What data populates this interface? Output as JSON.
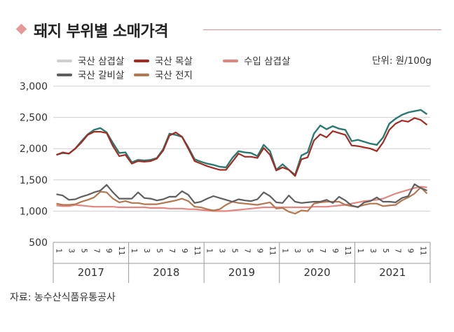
{
  "title": "돼지 부위별 소매가격",
  "source": "자료: 농수산식품유통공사",
  "unit_label": "단위: 원/100g",
  "chart_data": {
    "type": "line",
    "unit": "원/100g",
    "ylim": [
      500,
      3000
    ],
    "y_ticks": [
      500,
      1000,
      1500,
      2000,
      2500,
      3000
    ],
    "y_tick_labels": [
      "500",
      "1,000",
      "1,500",
      "2,000",
      "2,500",
      "3,000"
    ],
    "x_month_ticks": [
      "1",
      "3",
      "5",
      "7",
      "9",
      "11"
    ],
    "years": [
      "2017",
      "2018",
      "2019",
      "2020",
      "2021"
    ],
    "x_count": 60,
    "grid": true,
    "series": [
      {
        "name": "국산 삼겹살",
        "color": "#cfcfcf",
        "values": [
          1900,
          1930,
          1920,
          2000,
          2120,
          2230,
          2300,
          2330,
          2260,
          2090,
          1930,
          1940,
          1780,
          1820,
          1810,
          1820,
          1850,
          1990,
          2240,
          2220,
          2190,
          2020,
          1830,
          1790,
          1760,
          1740,
          1710,
          1700,
          1850,
          1960,
          1940,
          1930,
          1880,
          2060,
          1960,
          1660,
          1750,
          1660,
          1580,
          1890,
          1940,
          2240,
          2370,
          2310,
          2360,
          2320,
          2300,
          2120,
          2140,
          2110,
          2080,
          2060,
          2180,
          2400,
          2480,
          2540,
          2580,
          2600,
          2620,
          2550
        ]
      },
      {
        "name": "국산 목살",
        "color": "#a52a22",
        "values": [
          1900,
          1940,
          1920,
          2000,
          2100,
          2220,
          2270,
          2270,
          2250,
          2040,
          1880,
          1900,
          1760,
          1800,
          1790,
          1800,
          1840,
          1970,
          2210,
          2260,
          2190,
          2000,
          1800,
          1760,
          1720,
          1690,
          1660,
          1660,
          1790,
          1920,
          1870,
          1870,
          1850,
          2010,
          1900,
          1650,
          1700,
          1660,
          1560,
          1830,
          1860,
          2130,
          2230,
          2180,
          2280,
          2250,
          2220,
          2050,
          2040,
          2020,
          2000,
          1960,
          2100,
          2300,
          2400,
          2450,
          2430,
          2490,
          2460,
          2380
        ]
      },
      {
        "name": "국산 갈비살",
        "color": "#5f5f5f",
        "values": [
          1270,
          1250,
          1180,
          1190,
          1230,
          1260,
          1300,
          1330,
          1420,
          1300,
          1200,
          1200,
          1200,
          1300,
          1210,
          1200,
          1170,
          1190,
          1230,
          1230,
          1320,
          1260,
          1130,
          1150,
          1200,
          1240,
          1210,
          1180,
          1150,
          1190,
          1170,
          1160,
          1190,
          1300,
          1240,
          1140,
          1130,
          1250,
          1150,
          1130,
          1140,
          1150,
          1150,
          1180,
          1130,
          1230,
          1170,
          1090,
          1060,
          1140,
          1160,
          1220,
          1150,
          1150,
          1140,
          1210,
          1240,
          1430,
          1370,
          1330
        ]
      },
      {
        "name": "국산 전지",
        "color": "#b5774f",
        "values": [
          1120,
          1100,
          1100,
          1110,
          1150,
          1180,
          1220,
          1310,
          1300,
          1200,
          1140,
          1160,
          1130,
          1130,
          1110,
          1110,
          1110,
          1130,
          1150,
          1170,
          1200,
          1160,
          1070,
          1060,
          1030,
          1010,
          1030,
          1100,
          1150,
          1130,
          1120,
          1110,
          1100,
          1120,
          1140,
          1040,
          1050,
          990,
          960,
          1010,
          1000,
          1120,
          1140,
          1150,
          1150,
          1150,
          1100,
          1080,
          1070,
          1100,
          1120,
          1120,
          1080,
          1090,
          1100,
          1170,
          1220,
          1280,
          1380,
          1280
        ]
      },
      {
        "name": "수입 삼겹살",
        "color": "#e6857f",
        "values": [
          1090,
          1080,
          1080,
          1100,
          1090,
          1080,
          1070,
          1070,
          1070,
          1070,
          1060,
          1060,
          1060,
          1060,
          1060,
          1050,
          1050,
          1050,
          1040,
          1040,
          1040,
          1030,
          1030,
          1020,
          1010,
          1000,
          1000,
          1000,
          1010,
          1020,
          1030,
          1040,
          1050,
          1060,
          1060,
          1060,
          1060,
          1060,
          1060,
          1060,
          1060,
          1070,
          1070,
          1070,
          1080,
          1090,
          1100,
          1120,
          1140,
          1160,
          1170,
          1180,
          1200,
          1240,
          1280,
          1310,
          1340,
          1370,
          1390,
          1380
        ]
      }
    ]
  },
  "legend": [
    {
      "label": "국산 삼겹살",
      "color": "#cfcfcf"
    },
    {
      "label": "국산 목살",
      "color": "#a52a22"
    },
    {
      "label": "수입 삼겹살",
      "color": "#e6857f"
    },
    {
      "label": "국산 갈비살",
      "color": "#5f5f5f"
    },
    {
      "label": "국산 전지",
      "color": "#b5774f"
    }
  ]
}
